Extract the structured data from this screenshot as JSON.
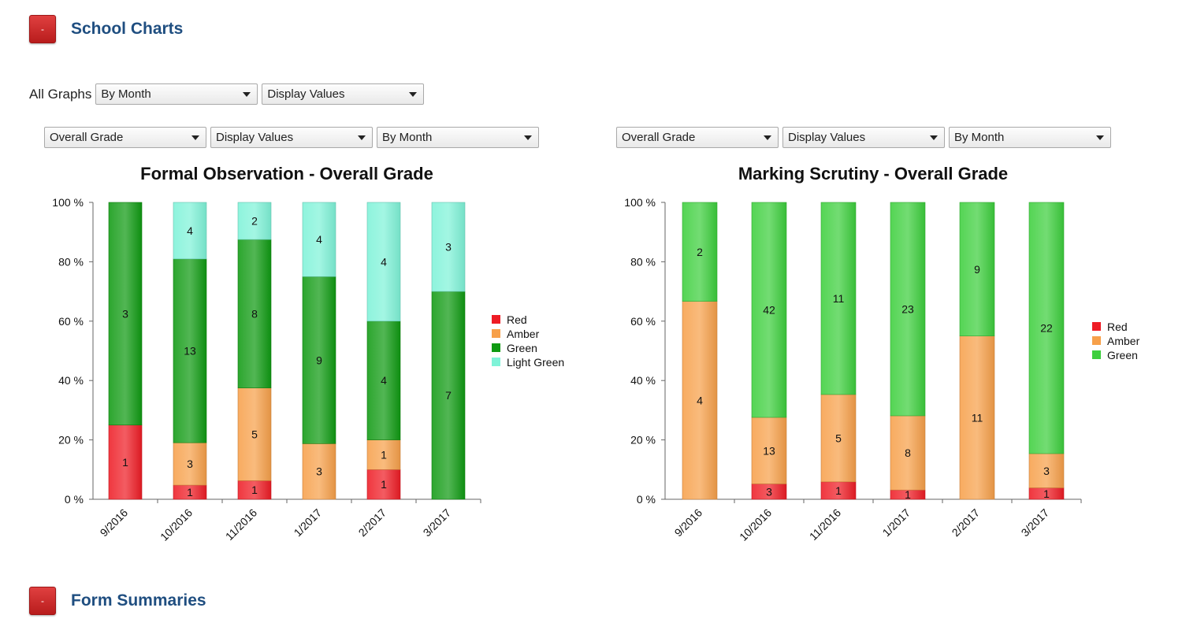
{
  "sections": {
    "school_charts": {
      "button_label": "-",
      "title": "School Charts"
    },
    "form_summaries": {
      "button_label": "-",
      "title": "Form Summaries"
    }
  },
  "global_controls": {
    "label": "All Graphs",
    "period_select": "By Month",
    "display_select": "Display Values"
  },
  "charts": [
    {
      "grade_select": "Overall Grade",
      "display_select": "Display Values",
      "period_select": "By Month"
    },
    {
      "grade_select": "Overall Grade",
      "display_select": "Display Values",
      "period_select": "By Month"
    }
  ],
  "colors": {
    "Red": "#ee1c25",
    "Amber": "#f7a04a",
    "Green": "#0f9a12",
    "Light Green": "#7ff3d8",
    "Green2": "#3dcf3d"
  },
  "chart_data": [
    {
      "type": "bar",
      "stacked": "percent",
      "title": "Formal Observation - Overall Grade",
      "categories": [
        "9/2016",
        "10/2016",
        "11/2016",
        "1/2017",
        "2/2017",
        "3/2017"
      ],
      "series": [
        {
          "name": "Red",
          "color": "#ee1c25",
          "values": [
            1,
            1,
            1,
            0,
            1,
            0
          ]
        },
        {
          "name": "Amber",
          "color": "#f7a04a",
          "values": [
            0,
            3,
            5,
            3,
            1,
            0
          ]
        },
        {
          "name": "Green",
          "color": "#0f9a12",
          "values": [
            3,
            13,
            8,
            9,
            4,
            7
          ]
        },
        {
          "name": "Light Green",
          "color": "#7ff3d8",
          "values": [
            0,
            4,
            2,
            4,
            4,
            3
          ]
        }
      ],
      "yticks": [
        "0 %",
        "20 %",
        "40 %",
        "60 %",
        "80 %",
        "100 %"
      ],
      "ylim": [
        0,
        100
      ],
      "legend": "right"
    },
    {
      "type": "bar",
      "stacked": "percent",
      "title": "Marking Scrutiny - Overall Grade",
      "categories": [
        "9/2016",
        "10/2016",
        "11/2016",
        "1/2017",
        "2/2017",
        "3/2017"
      ],
      "series": [
        {
          "name": "Red",
          "color": "#ee1c25",
          "values": [
            0,
            3,
            1,
            1,
            0,
            1
          ]
        },
        {
          "name": "Amber",
          "color": "#f7a04a",
          "values": [
            4,
            13,
            5,
            8,
            11,
            3
          ]
        },
        {
          "name": "Green",
          "color": "#3dcf3d",
          "values": [
            2,
            42,
            11,
            23,
            9,
            22
          ]
        }
      ],
      "yticks": [
        "0 %",
        "20 %",
        "40 %",
        "60 %",
        "80 %",
        "100 %"
      ],
      "ylim": [
        0,
        100
      ],
      "legend": "right"
    }
  ]
}
